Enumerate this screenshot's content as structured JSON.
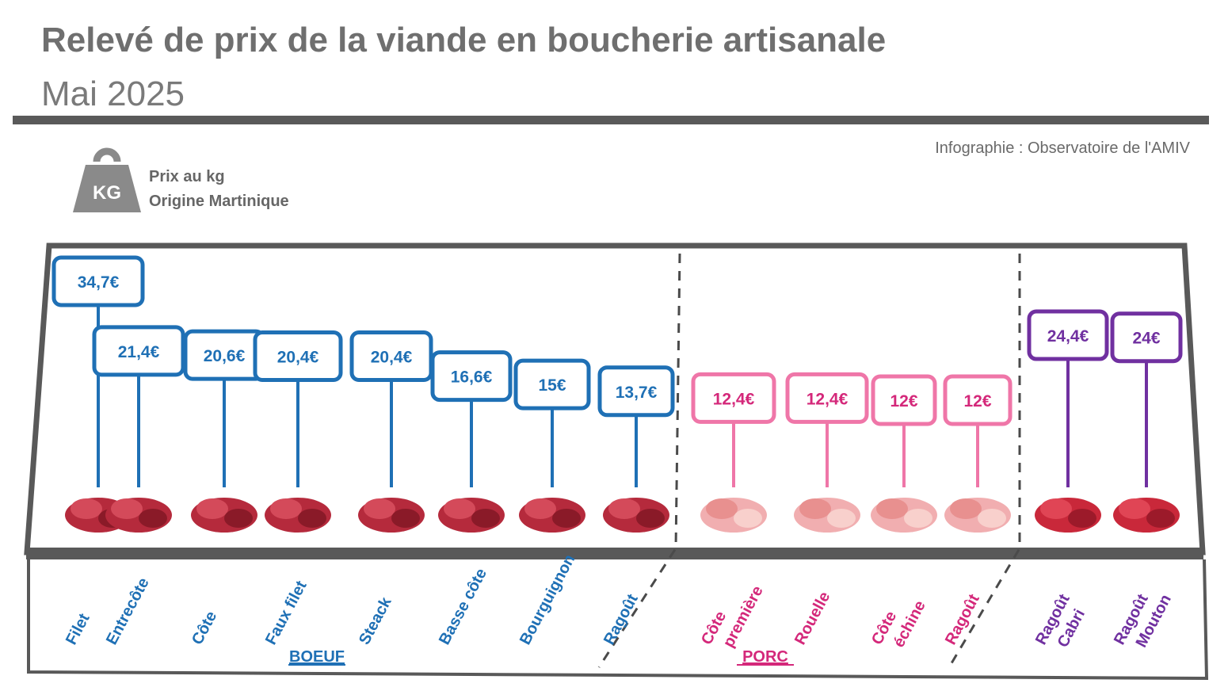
{
  "header": {
    "title": "Relevé de prix de la viande en boucherie artisanale",
    "subtitle": "Mai 2025",
    "credit": "Infographie : Observatoire de l'AMIV"
  },
  "legend": {
    "icon": "kg-weight-icon",
    "icon_text": "KG",
    "line1": "Prix au kg",
    "line2": "Origine Martinique"
  },
  "colors": {
    "boeuf": "#1f70b5",
    "porc_box": "#ef76a8",
    "porc_text": "#d4287a",
    "ovin": "#7030a0",
    "frame": "#595959"
  },
  "chart_data": {
    "type": "bar",
    "unit": "€",
    "groups": [
      {
        "name": "BOEUF",
        "color": "boeuf",
        "items": [
          {
            "label": "Filet",
            "price": "34,7€",
            "value": 34.7,
            "icon": "beef-filet-photo"
          },
          {
            "label": "Entrecôte",
            "price": "21,4€",
            "value": 21.4,
            "icon": "beef-entrecote-photo"
          },
          {
            "label": "Côte",
            "price": "20,6€",
            "value": 20.6,
            "icon": "beef-cote-photo"
          },
          {
            "label": "Faux filet",
            "price": "20,4€",
            "value": 20.4,
            "icon": "beef-faux-filet-photo"
          },
          {
            "label": "Steack",
            "price": "20,4€",
            "value": 20.4,
            "icon": "beef-steak-photo"
          },
          {
            "label": "Basse côte",
            "price": "16,6€",
            "value": 16.6,
            "icon": "beef-basse-cote-photo"
          },
          {
            "label": "Bourguignon",
            "price": "15€",
            "value": 15,
            "icon": "beef-bourguignon-photo"
          },
          {
            "label": "Ragoût",
            "price": "13,7€",
            "value": 13.7,
            "icon": "beef-ragout-photo"
          }
        ]
      },
      {
        "name": "PORC",
        "color": "porc",
        "items": [
          {
            "label": "Côte première",
            "price": "12,4€",
            "value": 12.4,
            "icon": "pork-cote-premiere-photo"
          },
          {
            "label": "Rouelle",
            "price": "12,4€",
            "value": 12.4,
            "icon": "pork-rouelle-photo"
          },
          {
            "label": "Côte échine",
            "price": "12€",
            "value": 12,
            "icon": "pork-cote-echine-photo"
          },
          {
            "label": "Ragoût",
            "price": "12€",
            "value": 12,
            "icon": "pork-ragout-photo"
          }
        ]
      },
      {
        "name": "",
        "color": "ovin",
        "items": [
          {
            "label": "Ragoût Cabri",
            "price": "24,4€",
            "value": 24.4,
            "icon": "goat-ragout-photo"
          },
          {
            "label": "Ragoût Mouton",
            "price": "24€",
            "value": 24,
            "icon": "mutton-ragout-photo"
          }
        ]
      }
    ]
  }
}
